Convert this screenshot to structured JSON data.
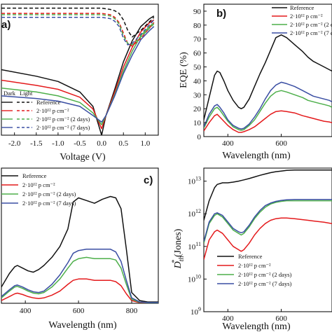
{
  "colors": {
    "reference": "#111111",
    "p2e12": "#e41a1c",
    "p2e12_2days": "#4daf4a",
    "p2e12_7days": "#3a4ea3"
  },
  "legend_labels": {
    "reference": "Reference",
    "p2e12": "2·10¹² p cm⁻²",
    "p2e12_2days": "2·10¹² p cm⁻² (2 days)",
    "p2e12_7days": "2·10¹² p cm⁻² (7 days)"
  },
  "chart_data": [
    {
      "panel": "a)",
      "type": "line",
      "xlabel": "Voltage (V)",
      "ylabel": "",
      "xlim": [
        -2.3,
        1.3
      ],
      "xticks": [
        "-2.0",
        "-1.5",
        "-1.0",
        "-0.5",
        "0.0",
        "0.5",
        "1.0"
      ],
      "legend_header": [
        "Dark",
        "Light"
      ],
      "series": [
        {
          "name": "Reference",
          "style": "dark",
          "x": [
            -2.3,
            -1.5,
            -1.0,
            -0.5,
            -0.2,
            0.0,
            0.1,
            0.3,
            0.5,
            0.7,
            0.9,
            1.1,
            1.2
          ],
          "y": [
            0.5,
            0.45,
            0.41,
            0.33,
            0.22,
            0.0,
            0.15,
            0.35,
            0.56,
            0.72,
            0.83,
            0.89,
            0.91
          ]
        },
        {
          "name": "2·10¹² p cm⁻²",
          "style": "dark",
          "x": [
            -2.3,
            -1.5,
            -1.0,
            -0.5,
            -0.2,
            0.0,
            0.1,
            0.3,
            0.5,
            0.7,
            0.9,
            1.1,
            1.2
          ],
          "y": [
            0.42,
            0.38,
            0.35,
            0.29,
            0.2,
            0.05,
            0.15,
            0.33,
            0.52,
            0.67,
            0.79,
            0.86,
            0.88
          ]
        },
        {
          "name": "2·10¹² p cm⁻² (2 days)",
          "style": "dark",
          "x": [
            -2.3,
            -1.5,
            -1.0,
            -0.5,
            -0.2,
            0.0,
            0.1,
            0.3,
            0.5,
            0.7,
            0.9,
            1.1,
            1.2
          ],
          "y": [
            0.36,
            0.33,
            0.3,
            0.25,
            0.17,
            0.08,
            0.15,
            0.31,
            0.49,
            0.64,
            0.76,
            0.83,
            0.86
          ]
        },
        {
          "name": "2·10¹² p cm⁻² (7 days)",
          "style": "dark",
          "x": [
            -2.3,
            -1.5,
            -1.0,
            -0.5,
            -0.2,
            0.0,
            0.1,
            0.3,
            0.5,
            0.7,
            0.9,
            1.1,
            1.2
          ],
          "y": [
            0.3,
            0.28,
            0.26,
            0.22,
            0.15,
            0.1,
            0.15,
            0.3,
            0.47,
            0.61,
            0.73,
            0.8,
            0.83
          ]
        },
        {
          "name": "Reference",
          "style": "light",
          "x": [
            -2.3,
            -1.5,
            -1.0,
            -0.5,
            0.0,
            0.2,
            0.3,
            0.4,
            0.5,
            0.6,
            0.7,
            0.9,
            1.2
          ],
          "y": [
            0.97,
            0.97,
            0.97,
            0.97,
            0.97,
            0.96,
            0.95,
            0.93,
            0.88,
            0.8,
            0.75,
            0.8,
            0.9
          ]
        },
        {
          "name": "2·10¹² p cm⁻²",
          "style": "light",
          "x": [
            -2.3,
            -1.5,
            -1.0,
            -0.5,
            0.0,
            0.2,
            0.3,
            0.4,
            0.5,
            0.6,
            0.7,
            0.9,
            1.2
          ],
          "y": [
            0.93,
            0.93,
            0.93,
            0.93,
            0.93,
            0.92,
            0.9,
            0.86,
            0.78,
            0.7,
            0.68,
            0.74,
            0.86
          ]
        },
        {
          "name": "2·10¹² p cm⁻² (2 days)",
          "style": "light",
          "x": [
            -2.3,
            -1.5,
            -1.0,
            -0.5,
            0.0,
            0.2,
            0.3,
            0.4,
            0.5,
            0.6,
            0.7,
            0.9,
            1.2
          ],
          "y": [
            0.92,
            0.92,
            0.92,
            0.92,
            0.92,
            0.91,
            0.89,
            0.85,
            0.76,
            0.7,
            0.69,
            0.75,
            0.85
          ]
        },
        {
          "name": "2·10¹² p cm⁻² (7 days)",
          "style": "light",
          "x": [
            -2.3,
            -1.5,
            -1.0,
            -0.5,
            0.0,
            0.2,
            0.3,
            0.4,
            0.5,
            0.6,
            0.7,
            0.9,
            1.2
          ],
          "y": [
            0.9,
            0.9,
            0.9,
            0.9,
            0.9,
            0.89,
            0.87,
            0.83,
            0.74,
            0.69,
            0.7,
            0.77,
            0.88
          ]
        }
      ]
    },
    {
      "panel": "b)",
      "type": "line",
      "xlabel": "Wavelength (nm)",
      "ylabel": "EQE (%)",
      "xlim": [
        310,
        790
      ],
      "ylim": [
        0,
        95
      ],
      "xticks": [
        400,
        600
      ],
      "yticks": [
        0,
        10,
        20,
        30,
        40,
        50,
        60,
        70,
        80,
        90
      ],
      "x": [
        310,
        330,
        350,
        360,
        370,
        385,
        400,
        420,
        440,
        450,
        460,
        480,
        500,
        520,
        540,
        560,
        580,
        600,
        620,
        650,
        680,
        700,
        720,
        740,
        760,
        780,
        790
      ],
      "series": [
        {
          "name": "Reference",
          "values": [
            12,
            28,
            44,
            47,
            46,
            40,
            33,
            26,
            21,
            20,
            21,
            27,
            36,
            45,
            53,
            62,
            71,
            73,
            71,
            66,
            61,
            57,
            54,
            52,
            50,
            48,
            47
          ]
        },
        {
          "name": "2·10¹² p cm⁻²",
          "values": [
            4,
            10,
            15,
            16,
            14,
            11,
            8,
            5,
            3,
            3,
            3.5,
            5,
            7,
            10,
            13,
            16,
            18,
            18.5,
            18,
            17,
            15,
            14,
            13,
            12,
            11,
            10.5,
            10
          ]
        },
        {
          "name": "2·10¹² p cm⁻² (2 days)",
          "values": [
            6,
            14,
            20,
            21,
            19,
            15,
            11,
            7,
            5,
            4.5,
            5,
            8,
            12,
            18,
            24,
            29,
            32,
            33,
            32,
            30,
            28,
            26,
            25,
            24,
            23,
            22,
            21
          ]
        },
        {
          "name": "2·10¹² p cm⁻² (7 days)",
          "values": [
            7,
            16,
            22,
            23,
            21,
            17,
            12,
            8,
            6,
            5.5,
            6,
            9,
            14,
            20,
            27,
            33,
            37,
            39,
            38,
            36,
            33,
            31,
            29,
            28,
            27,
            26,
            25
          ]
        }
      ]
    },
    {
      "panel": "c)",
      "type": "line",
      "xlabel": "Wavelength (nm)",
      "ylabel": "",
      "xlim": [
        310,
        900
      ],
      "xticks": [
        400,
        600,
        800
      ],
      "x": [
        310,
        340,
        360,
        370,
        390,
        410,
        430,
        450,
        470,
        500,
        530,
        560,
        580,
        600,
        630,
        660,
        690,
        720,
        740,
        760,
        780,
        800,
        830,
        860,
        900
      ],
      "series": [
        {
          "name": "Reference",
          "values": [
            0.12,
            0.22,
            0.27,
            0.28,
            0.26,
            0.24,
            0.23,
            0.25,
            0.28,
            0.34,
            0.42,
            0.55,
            0.75,
            0.78,
            0.76,
            0.74,
            0.77,
            0.79,
            0.78,
            0.7,
            0.4,
            0.08,
            0.02,
            0.01,
            0.01
          ]
        },
        {
          "name": "2·10¹² p cm⁻²",
          "values": [
            0.02,
            0.05,
            0.07,
            0.075,
            0.065,
            0.05,
            0.04,
            0.035,
            0.04,
            0.06,
            0.09,
            0.14,
            0.17,
            0.18,
            0.18,
            0.17,
            0.17,
            0.17,
            0.16,
            0.13,
            0.07,
            0.02,
            0.005,
            0.003,
            0.003
          ]
        },
        {
          "name": "2·10¹² p cm⁻² (2 days)",
          "values": [
            0.04,
            0.09,
            0.12,
            0.125,
            0.11,
            0.09,
            0.075,
            0.07,
            0.08,
            0.12,
            0.18,
            0.26,
            0.31,
            0.33,
            0.34,
            0.33,
            0.33,
            0.33,
            0.32,
            0.26,
            0.14,
            0.03,
            0.008,
            0.004,
            0.004
          ]
        },
        {
          "name": "2·10¹² p cm⁻² (7 days)",
          "values": [
            0.05,
            0.1,
            0.13,
            0.135,
            0.12,
            0.1,
            0.085,
            0.08,
            0.09,
            0.14,
            0.21,
            0.3,
            0.37,
            0.39,
            0.4,
            0.4,
            0.4,
            0.4,
            0.38,
            0.31,
            0.17,
            0.04,
            0.01,
            0.005,
            0.005
          ]
        }
      ]
    },
    {
      "panel": "",
      "type": "line",
      "xlabel": "Wavelength (nm)",
      "ylabel": "D*th (Jones)",
      "ylabel_main": "D",
      "ylabel_sub": "th",
      "ylabel_sup": "*",
      "ylabel_rest": " (Jones)",
      "xlim": [
        310,
        790
      ],
      "yscale": "log",
      "ylim_exp": [
        9,
        13.4
      ],
      "xticks": [
        400,
        600
      ],
      "yticks": [
        {
          "base": "10",
          "exp": "9",
          "value_exp": 9
        },
        {
          "base": "10",
          "exp": "10",
          "value_exp": 10
        },
        {
          "base": "10",
          "exp": "11",
          "value_exp": 11
        },
        {
          "base": "10",
          "exp": "12",
          "value_exp": 12
        },
        {
          "base": "10",
          "exp": "13",
          "value_exp": 13
        }
      ],
      "x": [
        310,
        330,
        350,
        360,
        380,
        400,
        420,
        440,
        450,
        460,
        480,
        500,
        520,
        540,
        560,
        580,
        600,
        620,
        650,
        680,
        700,
        720,
        740,
        760,
        790
      ],
      "series": [
        {
          "name": "Reference",
          "log10_values": [
            11.8,
            12.4,
            12.8,
            12.9,
            12.95,
            12.95,
            12.97,
            13.0,
            13.02,
            13.04,
            13.08,
            13.13,
            13.18,
            13.22,
            13.26,
            13.29,
            13.31,
            13.33,
            13.34,
            13.34,
            13.34,
            13.34,
            13.34,
            13.34,
            13.34
          ]
        },
        {
          "name": "2·10¹² p cm⁻²",
          "log10_values": [
            10.6,
            11.2,
            11.45,
            11.5,
            11.4,
            11.2,
            11.0,
            10.9,
            10.85,
            10.9,
            11.1,
            11.35,
            11.55,
            11.7,
            11.8,
            11.85,
            11.87,
            11.87,
            11.85,
            11.82,
            11.8,
            11.78,
            11.76,
            11.74,
            11.7
          ]
        },
        {
          "name": "2·10¹² p cm⁻² (2 days)",
          "log10_values": [
            11.1,
            11.7,
            11.95,
            12.0,
            11.9,
            11.7,
            11.5,
            11.4,
            11.35,
            11.4,
            11.6,
            11.85,
            12.05,
            12.2,
            12.3,
            12.35,
            12.38,
            12.4,
            12.4,
            12.4,
            12.4,
            12.4,
            12.4,
            12.4,
            12.4
          ]
        },
        {
          "name": "2·10¹² p cm⁻² (7 days)",
          "log10_values": [
            11.15,
            11.75,
            12.0,
            12.03,
            11.95,
            11.75,
            11.55,
            11.45,
            11.42,
            11.45,
            11.65,
            11.9,
            12.1,
            12.25,
            12.33,
            12.38,
            12.41,
            12.43,
            12.44,
            12.44,
            12.44,
            12.44,
            12.44,
            12.44,
            12.44
          ]
        }
      ]
    }
  ]
}
